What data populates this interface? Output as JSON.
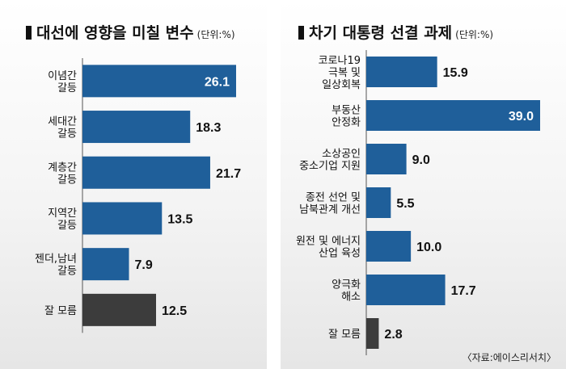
{
  "chart_data": [
    {
      "type": "bar",
      "orientation": "horizontal",
      "title": "대선에 영향을 미칠 변수",
      "unit": "(단위:%)",
      "categories": [
        [
          "이념간",
          "갈등"
        ],
        [
          "세대간",
          "갈등"
        ],
        [
          "계층간",
          "갈등"
        ],
        [
          "지역간",
          "갈등"
        ],
        [
          "젠더,남녀",
          "갈등"
        ],
        [
          "잘 모름"
        ]
      ],
      "values": [
        26.1,
        18.3,
        21.7,
        13.5,
        7.9,
        12.5
      ],
      "value_labels": [
        "26.1",
        "18.3",
        "21.7",
        "13.5",
        "7.9",
        "12.5"
      ],
      "xlim": [
        0,
        26.1
      ],
      "colors": [
        "#1f5f9a",
        "#1f5f9a",
        "#1f5f9a",
        "#1f5f9a",
        "#1f5f9a",
        "#3c3c3c"
      ],
      "grid": false
    },
    {
      "type": "bar",
      "orientation": "horizontal",
      "title": "차기 대통령 선결 과제",
      "unit": "(단위:%)",
      "categories": [
        [
          "코로나19",
          "극복 및",
          "일상회복"
        ],
        [
          "부동산",
          "안정화"
        ],
        [
          "소상공인",
          "중소기업 지원"
        ],
        [
          "종전 선언 및",
          "남북관계 개선"
        ],
        [
          "원전 및 에너지",
          "산업 육성"
        ],
        [
          "양극화",
          "해소"
        ],
        [
          "잘 모름"
        ]
      ],
      "values": [
        15.9,
        39.0,
        9.0,
        5.5,
        10.0,
        17.7,
        2.8
      ],
      "value_labels": [
        "15.9",
        "39.0",
        "9.0",
        "5.5",
        "10.0",
        "17.7",
        "2.8"
      ],
      "xlim": [
        0,
        39.0
      ],
      "colors": [
        "#1f5f9a",
        "#1f5f9a",
        "#1f5f9a",
        "#1f5f9a",
        "#1f5f9a",
        "#1f5f9a",
        "#3c3c3c"
      ],
      "grid": false
    }
  ],
  "source": "〈자료:에이스리서치〉"
}
